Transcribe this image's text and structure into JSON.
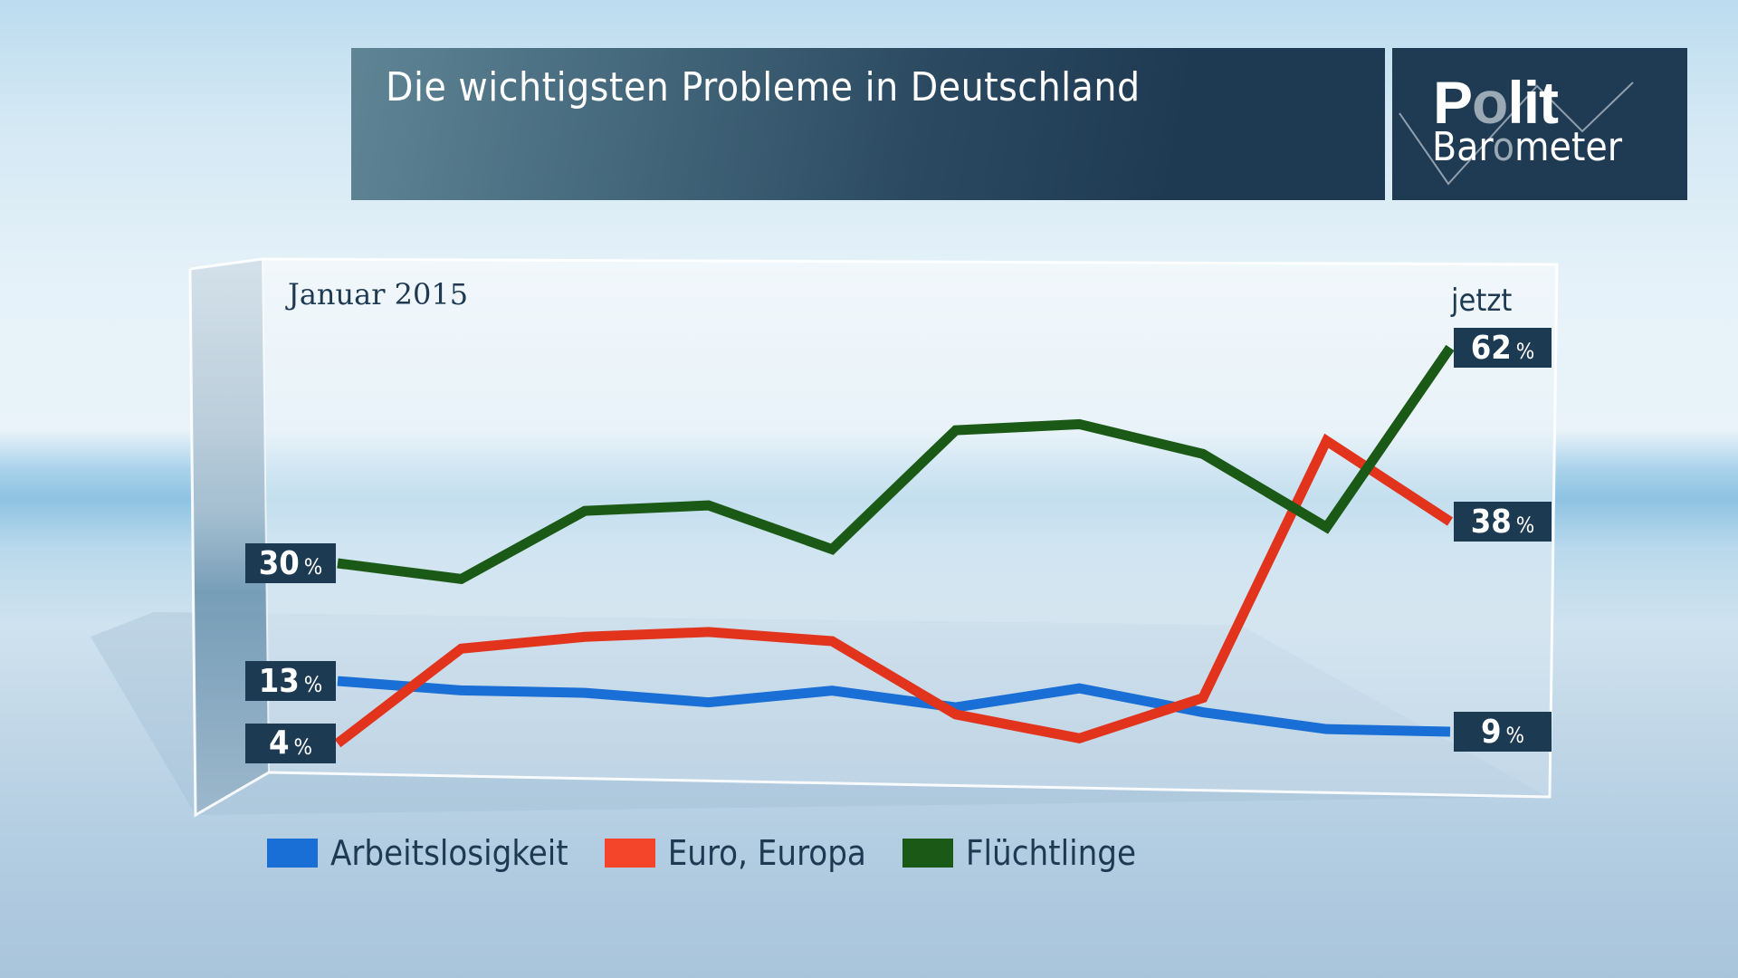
{
  "header": {
    "title": "Die wichtigsten Probleme in Deutschland",
    "logo_line1_a": "P",
    "logo_line1_o": "o",
    "logo_line1_b": "lit",
    "logo_line2_a": "Bar",
    "logo_line2_o": "o",
    "logo_line2_b": "meter"
  },
  "colors": {
    "Arbeitslosigkeit": "#1a6fd6",
    "Euro, Europa": "#e2341d",
    "Flüchtlinge": "#1b5a16",
    "badge": "#1d3a53",
    "text": "#1e3a52"
  },
  "chart_data": {
    "type": "line",
    "title": "Die wichtigsten Probleme in Deutschland",
    "xlabel": "",
    "ylabel": "",
    "x_start_label": "Januar 2015",
    "x_end_label": "jetzt",
    "x": [
      1,
      2,
      3,
      4,
      5,
      6,
      7,
      8,
      9,
      10
    ],
    "ylim": [
      0,
      70
    ],
    "grid": false,
    "legend_position": "bottom-left",
    "series": [
      {
        "name": "Arbeitslosigkeit",
        "values": [
          13,
          12,
          12,
          11,
          13,
          11,
          14,
          11,
          9,
          9
        ],
        "start_label": "13",
        "end_label": "9"
      },
      {
        "name": "Euro, Europa",
        "values": [
          4,
          18,
          20,
          21,
          20,
          10,
          7,
          13,
          49,
          38
        ],
        "start_label": "4",
        "end_label": "38"
      },
      {
        "name": "Flüchtlinge",
        "values": [
          30,
          28,
          38,
          39,
          33,
          50,
          51,
          47,
          37,
          62
        ],
        "start_label": "30",
        "end_label": "62"
      }
    ],
    "percent_sign": "%"
  },
  "legend": [
    {
      "label": "Arbeitslosigkeit",
      "color": "#1a6fd6"
    },
    {
      "label": "Euro, Europa",
      "color": "#e2341d"
    },
    {
      "label": "Flüchtlinge",
      "color": "#1b5a16"
    }
  ]
}
